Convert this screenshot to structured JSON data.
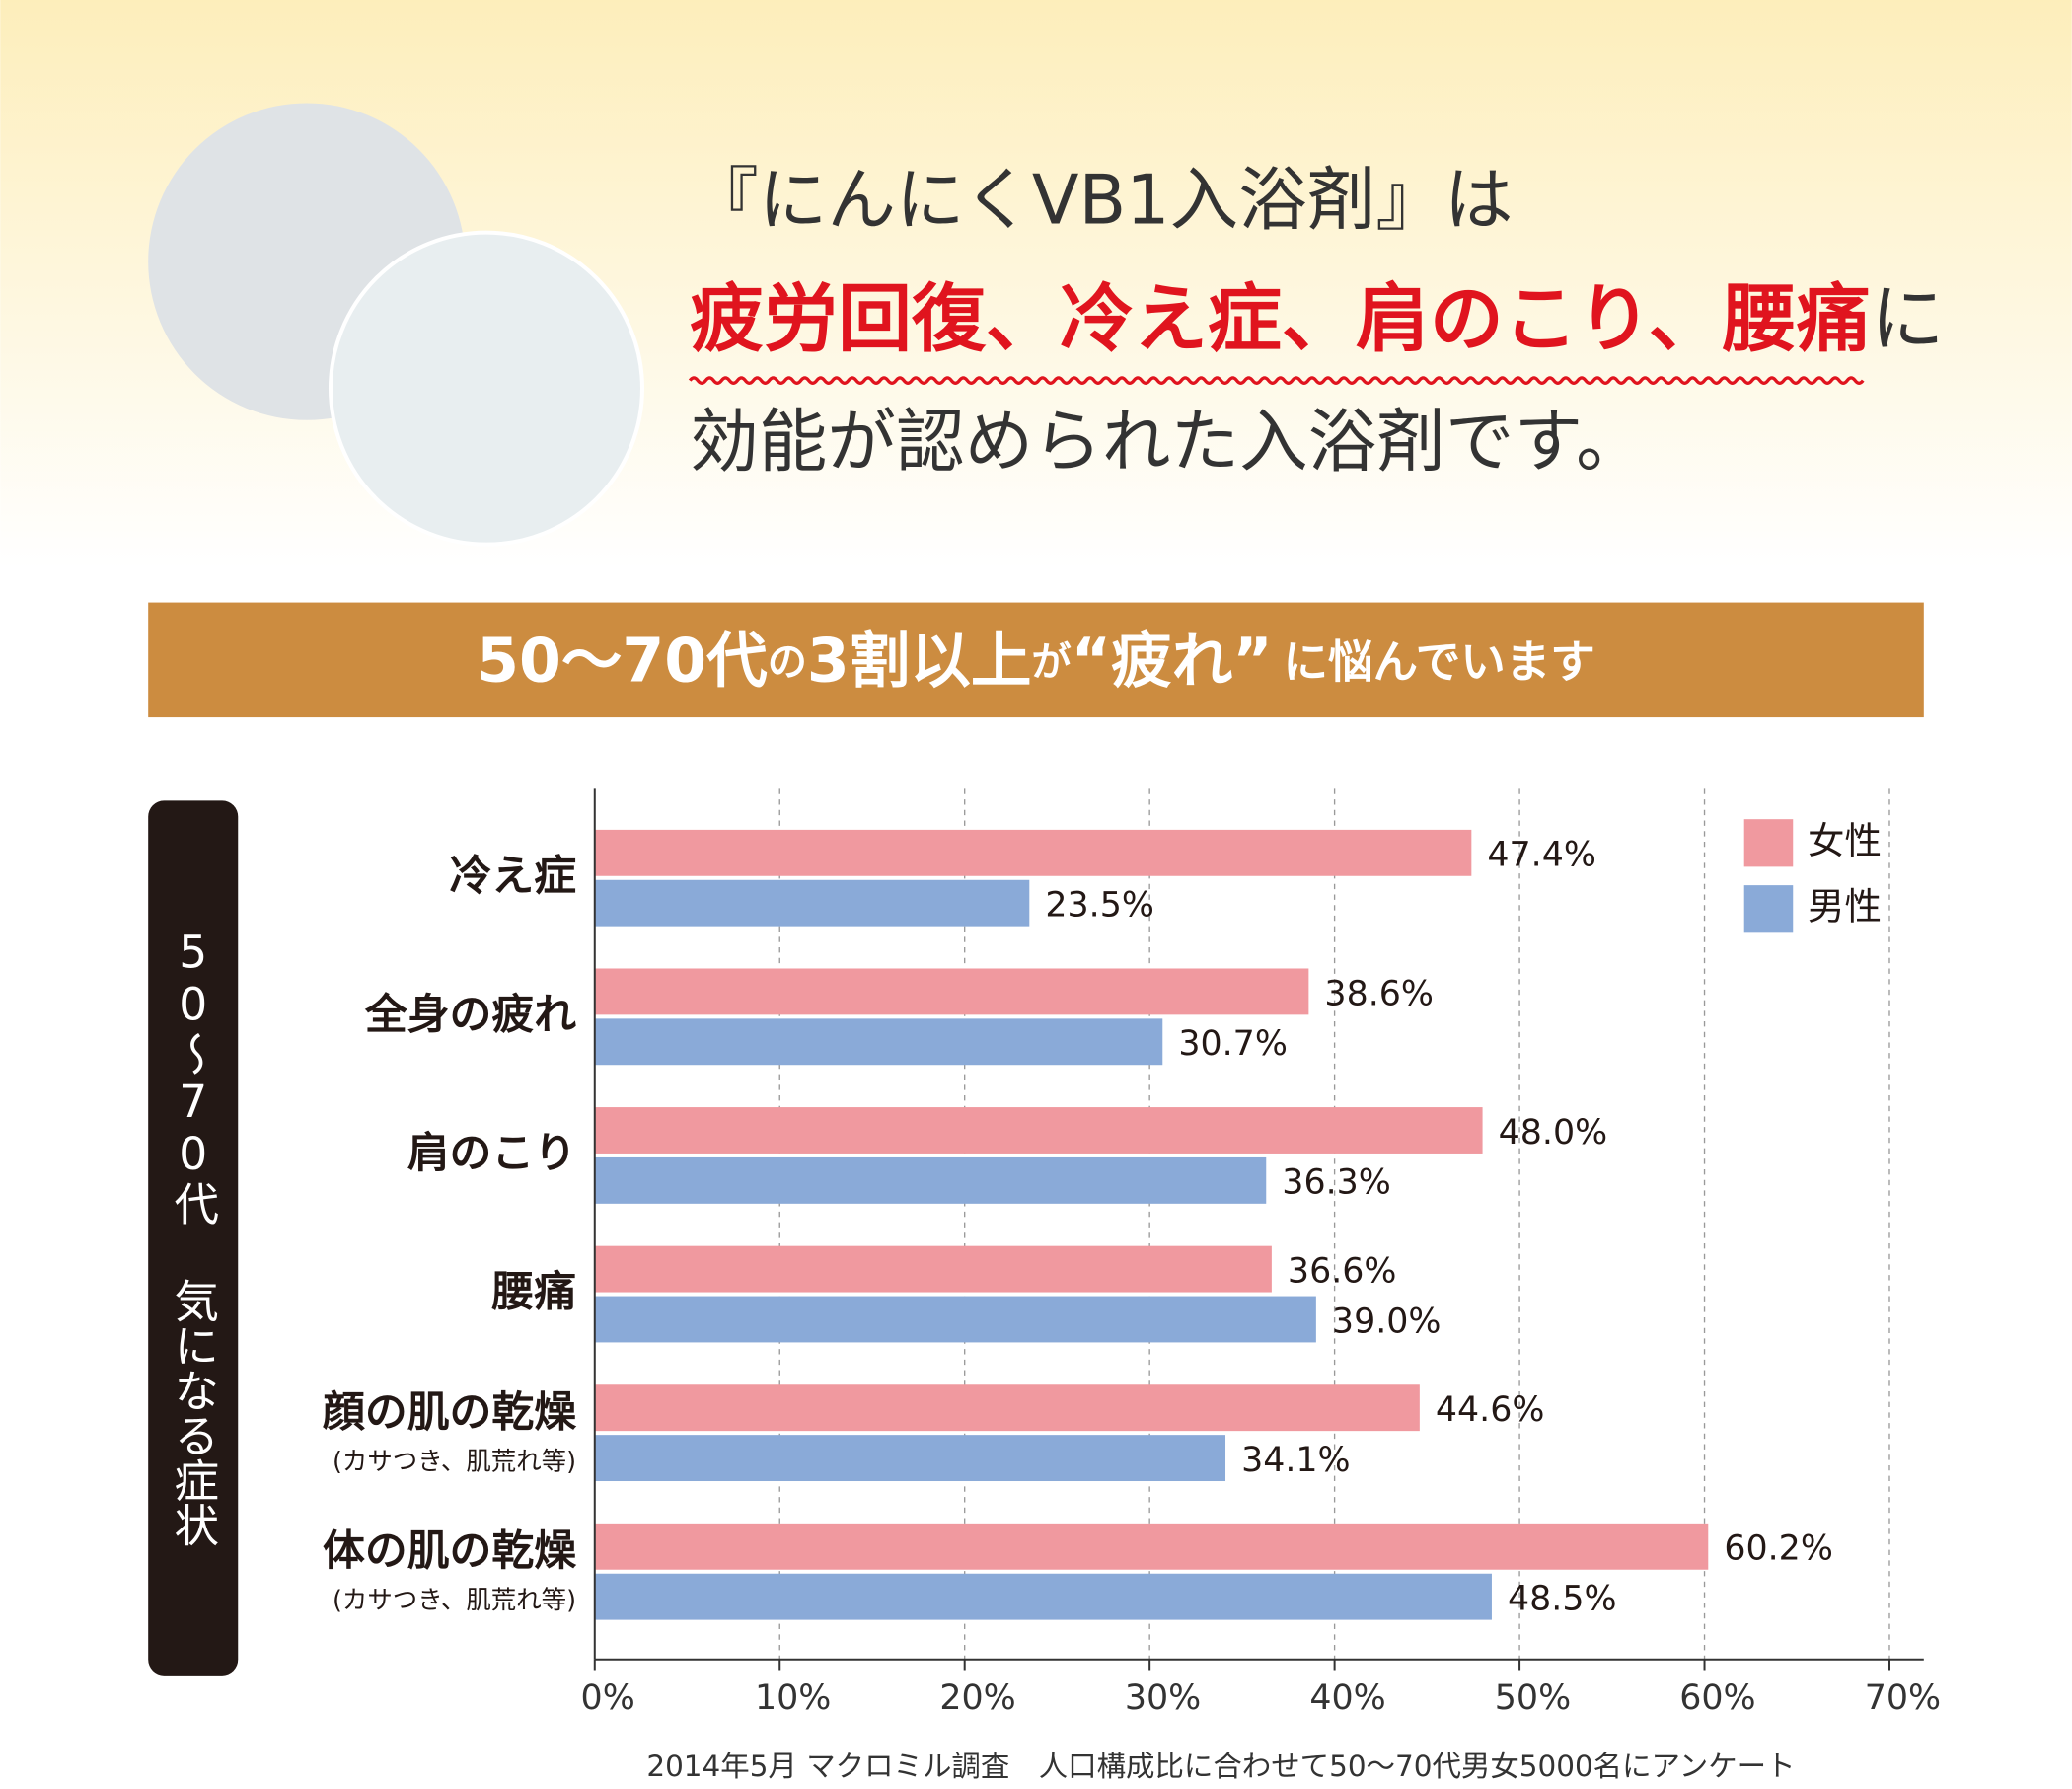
{
  "header": {
    "line1": "『にんにくVB1入浴剤』は",
    "line2_emphasis": "疲労回復、冷え症、肩のこり、腰痛",
    "line2_rest": "に",
    "line3": "効能が認められた入浴剤です。"
  },
  "banner": {
    "parts": [
      "50～70代",
      "の",
      "3割以上",
      "が",
      "“疲れ”",
      "に悩んでいます"
    ]
  },
  "chart_data": {
    "type": "hbar",
    "y_axis_title": "50～70代 気になる症状",
    "categories": [
      "冷え症",
      "全身の疲れ",
      "肩のこり",
      "腰痛",
      "顔の肌の乾燥",
      "体の肌の乾燥"
    ],
    "category_notes": [
      null,
      null,
      null,
      null,
      "(カサつき、肌荒れ等)",
      "(カサつき、肌荒れ等)"
    ],
    "series": [
      {
        "name": "女性",
        "color": "#f0999f",
        "values": [
          47.4,
          38.6,
          48.0,
          36.6,
          44.6,
          60.2
        ],
        "value_labels": [
          "47.4%",
          "38.6%",
          "48.0%",
          "36.6%",
          "44.6%",
          "60.2%"
        ]
      },
      {
        "name": "男性",
        "color": "#8aaad8",
        "values": [
          23.5,
          30.7,
          36.3,
          39.0,
          34.1,
          48.5
        ],
        "value_labels": [
          "23.5%",
          "30.7%",
          "36.3%",
          "39.0%",
          "34.1%",
          "48.5%"
        ]
      }
    ],
    "xlim": [
      0,
      70
    ],
    "xticks": [
      {
        "value": 0,
        "label": "0%"
      },
      {
        "value": 10,
        "label": "10%"
      },
      {
        "value": 20,
        "label": "20%"
      },
      {
        "value": 30,
        "label": "30%"
      },
      {
        "value": 40,
        "label": "40%"
      },
      {
        "value": 50,
        "label": "50%"
      },
      {
        "value": 60,
        "label": "60%"
      },
      {
        "value": 70,
        "label": "70%"
      }
    ],
    "grid": true,
    "legend": "top-right",
    "source": "2014年5月 マクロミル調査　人口構成比に合わせて50～70代男女5000名にアンケート"
  }
}
